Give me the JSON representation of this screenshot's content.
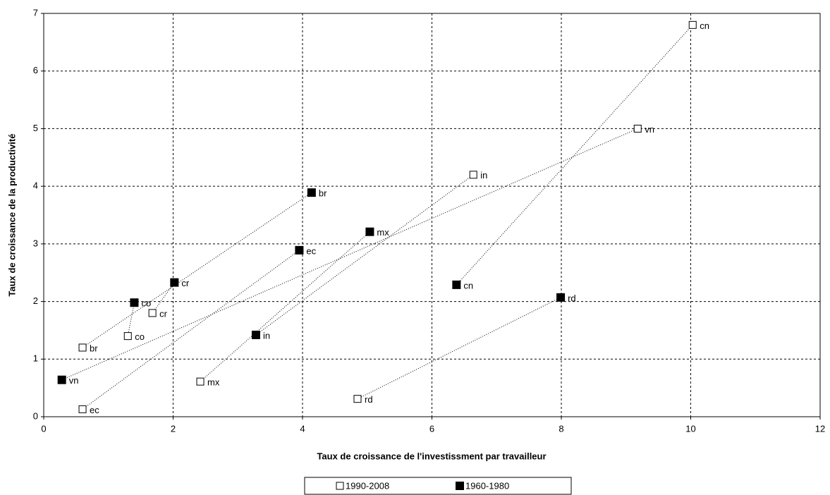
{
  "chart_data": {
    "type": "scatter",
    "x_label": "Taux de croissance de l'investissment par travailleur",
    "y_label": "Taux de croissance de la productivité",
    "xlim": [
      0,
      12
    ],
    "xticks": [
      0,
      2,
      4,
      6,
      8,
      10,
      12
    ],
    "ylim": [
      0,
      7
    ],
    "yticks": [
      0,
      1,
      2,
      3,
      4,
      5,
      6,
      7
    ],
    "grid": true,
    "legend": "bottom",
    "series": [
      {
        "name": "1990-2008",
        "color": "#000000",
        "marker": "open-square",
        "labels": [
          "cn",
          "vn",
          "in",
          "cr",
          "co",
          "br",
          "mx",
          "rd",
          "ec"
        ],
        "x": [
          10.03,
          9.18,
          6.64,
          1.68,
          1.3,
          0.6,
          2.42,
          4.85,
          0.6
        ],
        "values": [
          6.8,
          5.0,
          4.2,
          1.8,
          1.4,
          1.2,
          0.61,
          0.31,
          0.13
        ]
      },
      {
        "name": "1960-1980",
        "color": "#000000",
        "marker": "filled-square",
        "labels": [
          "br",
          "mx",
          "ec",
          "cr",
          "co",
          "cn",
          "rd",
          "in",
          "vn"
        ],
        "x": [
          4.14,
          5.04,
          3.95,
          2.02,
          1.4,
          6.38,
          7.99,
          3.28,
          0.28
        ],
        "values": [
          3.89,
          3.21,
          2.89,
          2.33,
          1.98,
          2.29,
          2.07,
          1.42,
          0.64
        ]
      }
    ]
  }
}
